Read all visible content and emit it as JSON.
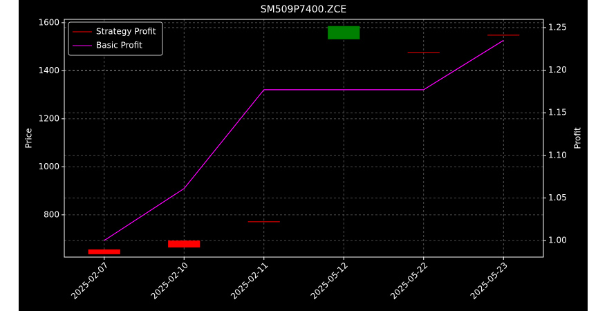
{
  "chart_data": {
    "type": "candlestick",
    "title": "SM509P7400.ZCE",
    "ylabel": "Price",
    "y2label": "Profit",
    "categories": [
      "2025-02-07",
      "2025-02-10",
      "2025-02-11",
      "2025-05-12",
      "2025-05-22",
      "2025-05-23"
    ],
    "candles": {
      "name": "Strategy Profit",
      "color": "#ff0000",
      "up_color": "#008000",
      "open": [
        656,
        693,
        771,
        1531,
        1476,
        1548
      ],
      "close": [
        636,
        664,
        771,
        1586,
        1476,
        1548
      ]
    },
    "series": [
      {
        "name": "Basic Profit",
        "color": "#ff00ff",
        "axis": "y2",
        "values": [
          1.0,
          1.061,
          1.177,
          1.177,
          1.177,
          1.235
        ]
      }
    ],
    "ylim": [
      624,
      1614
    ],
    "yticks": [
      800,
      1000,
      1200,
      1400,
      1600
    ],
    "y2lim": [
      0.9805,
      1.2597
    ],
    "y2ticks": [
      {
        "value": 1.0,
        "label": "1.00"
      },
      1.05,
      {
        "value": 1.1,
        "label": "1.10"
      },
      1.15,
      {
        "value": 1.2,
        "label": "1.20"
      },
      1.25
    ],
    "grid": true,
    "legend": "upper left"
  }
}
